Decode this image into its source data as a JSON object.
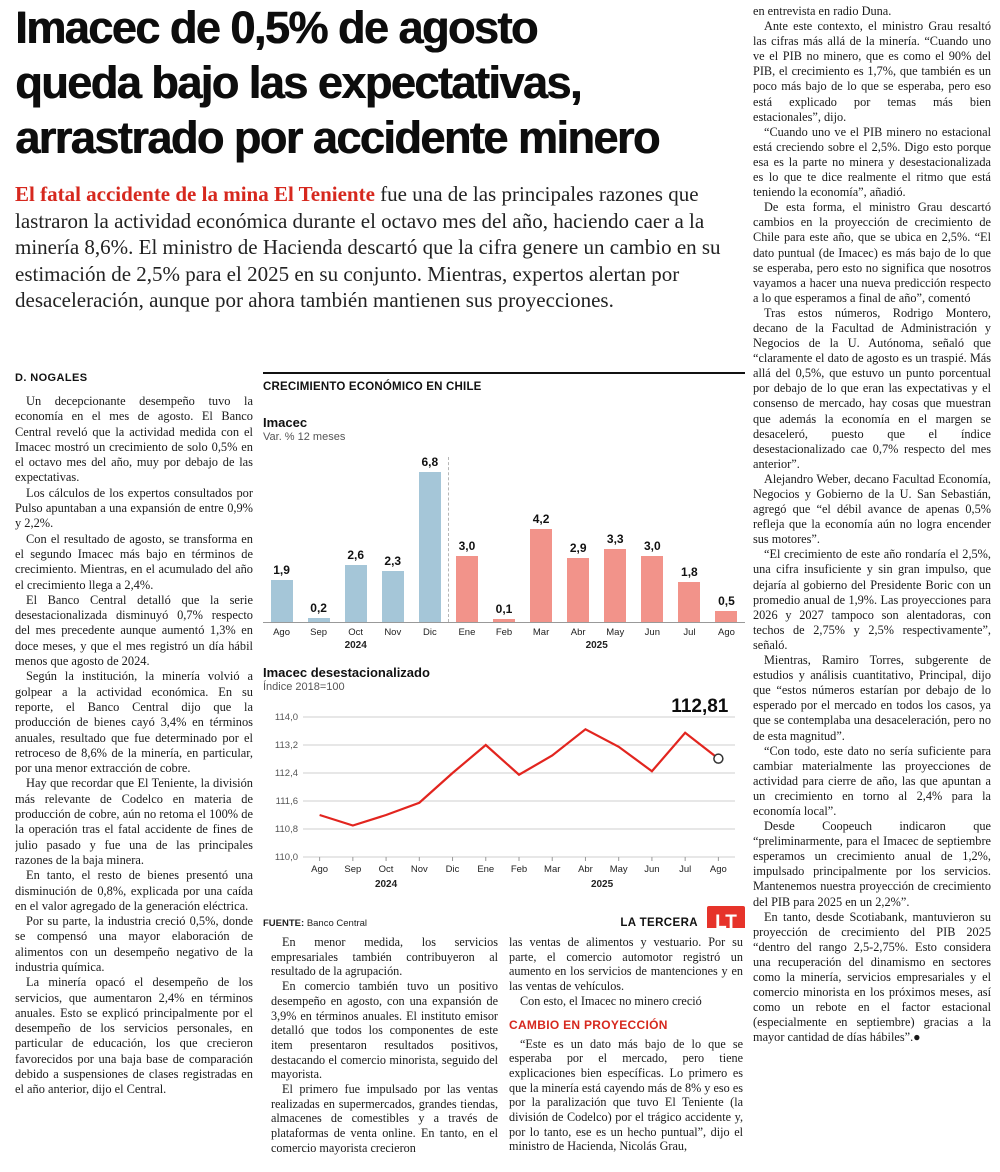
{
  "article": {
    "headline_lines": [
      "Imacec de 0,5% de agosto",
      "queda bajo las expectativas,",
      "arrastrado por accidente minero"
    ],
    "lede_highlight": "El fatal accidente de la mina El Teniente",
    "lede_text": " fue una de las principales razones que lastraron la actividad económica durante el octavo mes del año, haciendo caer a la minería 8,6%. El ministro de Hacienda descartó que la cifra genere un cambio en su estimación de 2,5% para el 2025 en su conjunto. Mientras, expertos alertan por desaceleración, aunque por ahora también mantienen sus proyecciones.",
    "byline": "D. NOGALES",
    "left_column": [
      "Un decepcionante desempeño tuvo la economía en el mes de agosto. El Banco Central reveló que la actividad medida con el Imacec mostró un crecimiento de solo 0,5% en el octavo mes del año, muy por debajo de las expectativas.",
      "Los cálculos de los expertos consultados por Pulso apuntaban a una expansión de entre 0,9% y 2,2%.",
      "Con el resultado de agosto, se transforma en el segundo Imacec más bajo en términos de crecimiento. Mientras, en el acumulado del año el crecimiento llega a 2,4%.",
      "El Banco Central detalló que la serie desestacionalizada disminuyó 0,7% respecto del mes precedente aunque aumentó 1,3% en doce meses, y que el mes registró un día hábil menos que agosto de 2024.",
      "Según la institución, la minería volvió a golpear a la actividad económica. En su reporte, el Banco Central dijo que la producción de bienes cayó 3,4% en términos anuales, resultado que fue determinado por el retroceso de 8,6% de la minería, en particular, por una menor extracción de cobre.",
      "Hay que recordar que El Teniente, la división más relevante de Codelco en materia de producción de cobre, aún no retoma el 100% de la operación tras el fatal accidente de fines de julio pasado y fue una de las principales razones de la baja minera.",
      "En tanto, el resto de bienes presentó una disminución de 0,8%, explicada por una caída en el valor agregado de la generación eléctrica.",
      "Por su parte, la industria creció 0,5%, donde se compensó una mayor elaboración de alimentos con un desempeño negativo de la industria química.",
      "La minería opacó el desempeño de los servicios, que aumentaron 2,4% en términos anuales. Esto se explicó principalmente por el desempeño de los servicios personales, en particular de educación, los que crecieron favorecidos por una baja base de comparación debido a suspensiones de clases registradas en el año anterior, dijo el Central."
    ],
    "mid_column_1": [
      "En menor medida, los servicios empresariales también contribuyeron al resultado de la agrupación.",
      "En comercio también tuvo un positivo desempeño en agosto, con una expansión de 3,9% en términos anuales. El instituto emisor detalló que todos los componentes de este item presentaron resultados positivos, destacando el comercio minorista, seguido del mayorista.",
      "El primero fue impulsado por las ventas realizadas en supermercados, grandes tiendas, almacenes de comestibles y a través de plataformas de venta online. En tanto, en el comercio mayorista crecieron"
    ],
    "mid_column_2_before": [
      "las ventas de alimentos y vestuario. Por su parte, el comercio automotor registró un aumento en los servicios de mantenciones y en las ventas de vehículos.",
      "Con esto, el Imacec no minero creció"
    ],
    "mid_column_2_subhead": "CAMBIO EN PROYECCIÓN",
    "mid_column_2_after": [
      "“Este es un dato más bajo de lo que se esperaba por el mercado, pero tiene explicaciones bien específicas. Lo primero es que la minería está cayendo más de 8% y eso es por la paralización que tuvo El Teniente (la división de Codelco) por el trágico accidente y, por lo tanto, ese es un hecho puntual”, dijo el ministro de Hacienda, Nicolás Grau,"
    ],
    "right_column": [
      "en entrevista en radio Duna.",
      "Ante este contexto, el ministro Grau resaltó las cifras más allá de la minería. “Cuando uno ve el PIB no minero, que es como el 90% del PIB, el crecimiento es 1,7%, que también es un poco más bajo de lo que se esperaba, pero eso está explicado por temas más bien estacionales”, dijo.",
      "“Cuando uno ve el PIB minero no estacional está creciendo sobre el 2,5%. Digo esto porque esa es la parte no minera y desestacionalizada es lo que te dice realmente el ritmo que está teniendo la economía”, añadió.",
      "De esta forma, el ministro Grau descartó cambios en la proyección de crecimiento de Chile para este año, que se ubica en 2,5%. “El dato puntual (de Imacec) es más bajo de lo que se esperaba, pero esto no significa que nosotros vayamos a hacer una nueva predicción respecto a lo que esperamos a final de año”, comentó",
      "Tras estos números, Rodrigo Montero, decano de la Facultad de Administración y Negocios de la U. Autónoma, señaló que “claramente el dato de agosto es un traspié. Más allá del 0,5%, que estuvo un punto porcentual por debajo de lo que eran las expectativas y el consenso de mercado, hay cosas que muestran que además la economía en el margen se desaceleró, puesto que el índice desestacionalizado cae 0,7% respecto del mes anterior”.",
      "Alejandro Weber, decano Facultad Economía, Negocios y Gobierno de la U. San Sebastián, agregó que “el débil avance de apenas 0,5% refleja que la economía aún no logra encender sus motores”.",
      "“El crecimiento de este año rondaría el 2,5%, una cifra insuficiente y sin gran impulso, que dejaría al gobierno del Presidente Boric con un promedio anual de 1,9%. Las proyecciones para 2026 y 2027 tampoco son alentadoras, con techos de 2,75% y 2,5% respectivamente”, señaló.",
      "Mientras, Ramiro Torres, subgerente de estudios y análisis cuantitativo, Principal, dijo que “estos números estarían por debajo de lo esperado por el mercado en todos los casos, ya que se contemplaba una desaceleración, pero no de esta magnitud”.",
      "“Con todo, este dato no sería suficiente para cambiar materialmente las proyecciones de actividad para cierre de año, las que apuntan a un crecimiento en torno al 2,4% para la economía local”.",
      "Desde Coopeuch indicaron que “preliminarmente, para el Imacec de septiembre esperamos un crecimiento anual de 1,2%, impulsado principalmente por los servicios. Mantenemos nuestra proyección de crecimiento del PIB para 2025 en un 2,2%”.",
      "En tanto, desde Scotiabank, mantuvieron su proyección de crecimiento del PIB 2025 “dentro del rango 2,5-2,75%. Esto considera una recuperación del dinamismo en sectores como la minería, servicios empresariales y el comercio minorista en los próximos meses, así como un rebote en el factor estacional (especialmente en septiembre) gracias a la mayor cantidad de días hábiles”.●"
    ]
  },
  "chart": {
    "header": "CRECIMIENTO ECONÓMICO EN CHILE",
    "source_label": "FUENTE:",
    "source_value": "Banco Central",
    "brand": "LA TERCERA",
    "logo_text": "LT"
  },
  "chart_data": [
    {
      "type": "bar",
      "title": "Imacec",
      "subtitle": "Var. % 12 meses",
      "categories": [
        "Ago",
        "Sep",
        "Oct",
        "Nov",
        "Dic",
        "Ene",
        "Feb",
        "Mar",
        "Abr",
        "May",
        "Jun",
        "Jul",
        "Ago"
      ],
      "values": [
        1.9,
        0.2,
        2.6,
        2.3,
        6.8,
        3.0,
        0.1,
        4.2,
        2.9,
        3.3,
        3.0,
        1.8,
        0.5
      ],
      "labels": [
        "1,9",
        "0,2",
        "2,6",
        "2,3",
        "6,8",
        "3,0",
        "0,1",
        "4,2",
        "2,9",
        "3,3",
        "3,0",
        "1,8",
        "0,5"
      ],
      "year_groups": [
        {
          "label": "2024",
          "from": 0,
          "to": 4,
          "color": "#a5c6d8"
        },
        {
          "label": "2025",
          "from": 5,
          "to": 12,
          "color": "#f2938a"
        }
      ],
      "ylim": [
        0,
        6.8
      ],
      "grid": false,
      "legend": "none"
    },
    {
      "type": "line",
      "title": "Imacec desestacionalizado",
      "subtitle": "Índice 2018=100",
      "categories": [
        "Ago",
        "Sep",
        "Oct",
        "Nov",
        "Dic",
        "Ene",
        "Feb",
        "Mar",
        "Abr",
        "May",
        "Jun",
        "Jul",
        "Ago"
      ],
      "values": [
        111.2,
        110.9,
        111.2,
        111.55,
        112.4,
        113.2,
        112.35,
        112.9,
        113.65,
        113.15,
        112.45,
        113.55,
        112.81
      ],
      "yticks": [
        "114,0",
        "113,2",
        "112,4",
        "111,6",
        "110,8",
        "110,0"
      ],
      "ylim": [
        110.0,
        114.0
      ],
      "last_label": "112,81",
      "line_color": "#e2251f",
      "year_groups": [
        {
          "label": "2024",
          "from": 0,
          "to": 4
        },
        {
          "label": "2025",
          "from": 5,
          "to": 12
        }
      ],
      "grid": true,
      "legend": "none"
    }
  ],
  "colors": {
    "accent_red": "#d6281e",
    "bar_2024_blue": "#a5c6d8",
    "bar_2025_salmon": "#f2938a",
    "line_red": "#e2251f",
    "logo_red": "#e6332a"
  }
}
